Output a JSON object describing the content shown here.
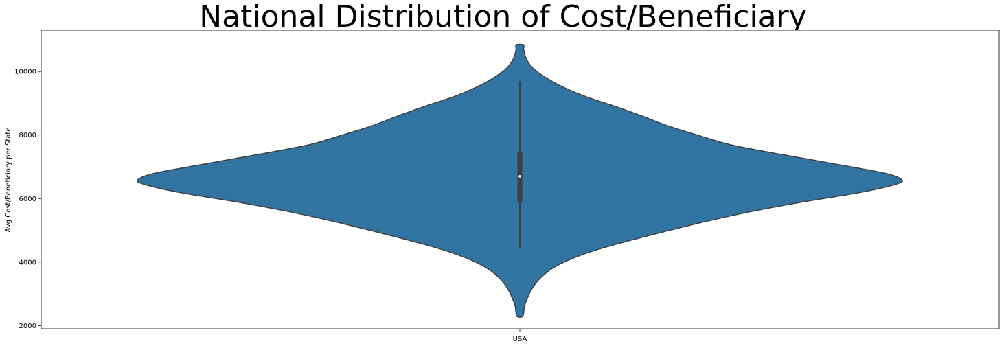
{
  "chart_data": {
    "type": "violin",
    "title": "National Distribution of Cost/Beneficiary",
    "xlabel": "",
    "ylabel": "Avg Cost/Beneficiary per State",
    "categories": [
      "USA"
    ],
    "ylim": [
      1900,
      11300
    ],
    "yticks": [
      2000,
      4000,
      6000,
      8000,
      10000
    ],
    "grid": false,
    "colors": {
      "fill": "#3274a1",
      "edge": "#3f3f3f",
      "box": "#3f3f3f",
      "median": "#ffffff"
    },
    "box": {
      "whisker_low": 4450,
      "q1": 5900,
      "median": 6700,
      "q3": 7450,
      "whisker_high": 9700
    },
    "density_profile": [
      [
        2300,
        0.008
      ],
      [
        2600,
        0.012
      ],
      [
        2900,
        0.021
      ],
      [
        3200,
        0.034
      ],
      [
        3500,
        0.054
      ],
      [
        3800,
        0.085
      ],
      [
        4100,
        0.135
      ],
      [
        4400,
        0.205
      ],
      [
        4700,
        0.295
      ],
      [
        5000,
        0.393
      ],
      [
        5300,
        0.495
      ],
      [
        5600,
        0.61
      ],
      [
        5900,
        0.745
      ],
      [
        6200,
        0.895
      ],
      [
        6450,
        0.985
      ],
      [
        6600,
        1.0
      ],
      [
        6800,
        0.955
      ],
      [
        7100,
        0.82
      ],
      [
        7400,
        0.68
      ],
      [
        7700,
        0.55
      ],
      [
        8000,
        0.465
      ],
      [
        8300,
        0.385
      ],
      [
        8600,
        0.32
      ],
      [
        8900,
        0.25
      ],
      [
        9200,
        0.175
      ],
      [
        9500,
        0.115
      ],
      [
        9800,
        0.069
      ],
      [
        10100,
        0.035
      ],
      [
        10400,
        0.017
      ],
      [
        10700,
        0.01
      ],
      [
        10840,
        0.01
      ]
    ]
  }
}
